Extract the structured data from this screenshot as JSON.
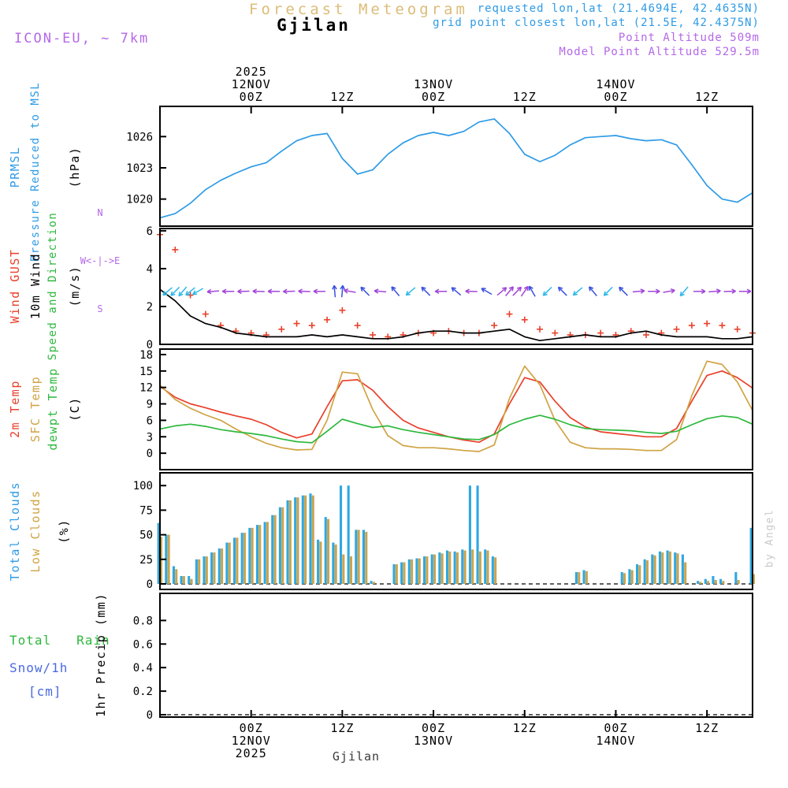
{
  "header": {
    "plot_title": "Forecast Meteogram",
    "station": "Gjilan",
    "model": "ICON-EU, ~ 7km",
    "requested": "requested lon,lat (21.4694E, 42.4635N)",
    "grid_point": "grid point closest lon,lat (21.5E, 42.4375N)",
    "point_altitude": "Point Altitude 509m",
    "model_altitude": "Model Point Altitude 529.5m"
  },
  "footer": {
    "station": "Gjilan"
  },
  "watermark": "by Angel",
  "left_labels": {
    "prmsl": "PRMSL",
    "prmsl_long": "Pressure Reduced to MSL",
    "hpa": "(hPa)",
    "gust": "Wind GUST",
    "wind10": "10m Wind",
    "speed_dir": "Speed and Direction",
    "ms": "(m/s)",
    "t2m": "2m Temp",
    "sfc": "SFC Temp",
    "dewpt": "dewpt Temp",
    "c": "(C)",
    "total_clouds": "Total Clouds",
    "low_clouds": "Low Clouds",
    "pct": "(%)",
    "total_rain": "Total   Rain",
    "snow": "Snow/1h",
    "cm": "[cm]",
    "precip_axis": "1hr Precip (mm)",
    "compass_n": "N",
    "compass_we": "W<-|->E",
    "compass_s": "S"
  },
  "colors": {
    "pressure_line": "#2e9be6",
    "gust": "#e8402a",
    "wind10": "#000000",
    "t2m": "#e8402a",
    "sfc_temp": "#d0a344",
    "dewpoint": "#2db83d",
    "total_clouds": "#2fa8e0",
    "low_clouds": "#c9a450",
    "rain": "#2db83d",
    "snow": "#4a6ae0",
    "purple": "#b468e8",
    "title_tan": "#dcbd78"
  },
  "chart_data": {
    "type": "line",
    "title": "Forecast Meteogram",
    "station": "Gjilan",
    "x": {
      "description": "hours from plot start (11NOV2025 12Z) to end (14NOV2025 ~18Z)",
      "total_hours": 78,
      "ticks": [
        {
          "h": 12,
          "top": [
            "2025",
            "12NOV",
            "00Z"
          ],
          "bottom": [
            "00Z",
            "12NOV",
            "2025"
          ]
        },
        {
          "h": 24,
          "top": [
            "12Z"
          ],
          "bottom": [
            "12Z"
          ]
        },
        {
          "h": 36,
          "top": [
            "13NOV",
            "00Z"
          ],
          "bottom": [
            "00Z",
            "13NOV"
          ]
        },
        {
          "h": 48,
          "top": [
            "12Z"
          ],
          "bottom": [
            "12Z"
          ]
        },
        {
          "h": 60,
          "top": [
            "14NOV",
            "00Z"
          ],
          "bottom": [
            "00Z",
            "14NOV"
          ]
        },
        {
          "h": 72,
          "top": [
            "12Z"
          ],
          "bottom": [
            "12Z"
          ]
        }
      ]
    },
    "panels": [
      {
        "name": "pressure",
        "type": "line",
        "ylabel": "(hPa)",
        "ylim": [
          1017.4,
          1028.9
        ],
        "yticks": [
          1020,
          1023,
          1026
        ],
        "series": [
          {
            "name": "PRMSL",
            "color": "#2e9be6",
            "step_hours": 2,
            "values": [
              1018.2,
              1018.6,
              1019.6,
              1020.9,
              1021.8,
              1022.5,
              1023.1,
              1023.5,
              1024.6,
              1025.6,
              1026.1,
              1026.3,
              1023.9,
              1022.4,
              1022.8,
              1024.3,
              1025.4,
              1026.1,
              1026.4,
              1026.1,
              1026.5,
              1027.4,
              1027.7,
              1026.3,
              1024.3,
              1023.6,
              1024.2,
              1025.2,
              1025.9,
              1026.0,
              1026.1,
              1025.8,
              1025.6,
              1025.7,
              1025.2,
              1023.3,
              1021.3,
              1020.0,
              1019.7,
              1020.6
            ]
          }
        ]
      },
      {
        "name": "wind",
        "type": "line",
        "ylabel": "(m/s)",
        "ylim": [
          0,
          6.12
        ],
        "yticks": [
          0,
          2,
          4,
          6
        ],
        "series": [
          {
            "name": "Wind GUST",
            "color": "#e8402a",
            "marker": "plus",
            "step_hours": 2,
            "values": [
              5.8,
              5.0,
              2.6,
              1.6,
              1.0,
              0.7,
              0.6,
              0.5,
              0.8,
              1.1,
              1.0,
              1.3,
              1.8,
              1.0,
              0.5,
              0.4,
              0.5,
              0.6,
              0.6,
              0.7,
              0.6,
              0.6,
              1.0,
              1.6,
              1.3,
              0.8,
              0.6,
              0.5,
              0.5,
              0.6,
              0.5,
              0.7,
              0.5,
              0.6,
              0.8,
              1.0,
              1.1,
              1.0,
              0.8,
              0.6
            ]
          },
          {
            "name": "10m Wind Speed",
            "color": "#000000",
            "step_hours": 2,
            "values": [
              2.9,
              2.3,
              1.5,
              1.1,
              0.9,
              0.6,
              0.5,
              0.4,
              0.4,
              0.4,
              0.5,
              0.4,
              0.5,
              0.4,
              0.3,
              0.3,
              0.4,
              0.6,
              0.7,
              0.7,
              0.6,
              0.6,
              0.7,
              0.8,
              0.4,
              0.2,
              0.3,
              0.4,
              0.5,
              0.4,
              0.4,
              0.6,
              0.7,
              0.5,
              0.4,
              0.4,
              0.4,
              0.3,
              0.3,
              0.4
            ]
          }
        ],
        "wind_arrows": {
          "plot_level_ms": 2.8,
          "colors": {
            "c": "#2fb9ea",
            "b": "#3a50e0",
            "p": "#a245d8"
          },
          "items": [
            [
              1,
              230,
              "c"
            ],
            [
              2,
              225,
              "c"
            ],
            [
              3,
              220,
              "c"
            ],
            [
              4,
              230,
              "c"
            ],
            [
              5,
              240,
              "c"
            ],
            [
              7,
              265,
              "p"
            ],
            [
              9,
              270,
              "p"
            ],
            [
              11,
              268,
              "p"
            ],
            [
              13,
              272,
              "p"
            ],
            [
              15,
              270,
              "p"
            ],
            [
              17,
              268,
              "p"
            ],
            [
              19,
              272,
              "p"
            ],
            [
              21,
              270,
              "p"
            ],
            [
              23,
              355,
              "b"
            ],
            [
              24,
              5,
              "b"
            ],
            [
              25,
              280,
              "p"
            ],
            [
              27,
              315,
              "b"
            ],
            [
              29,
              275,
              "p"
            ],
            [
              31,
              320,
              "b"
            ],
            [
              33,
              230,
              "c"
            ],
            [
              35,
              315,
              "b"
            ],
            [
              37,
              270,
              "p"
            ],
            [
              39,
              310,
              "b"
            ],
            [
              41,
              272,
              "p"
            ],
            [
              43,
              300,
              "b"
            ],
            [
              45,
              50,
              "p"
            ],
            [
              46,
              40,
              "p"
            ],
            [
              47,
              45,
              "p"
            ],
            [
              48,
              35,
              "p"
            ],
            [
              49,
              330,
              "b"
            ],
            [
              51,
              225,
              "c"
            ],
            [
              53,
              315,
              "b"
            ],
            [
              55,
              230,
              "c"
            ],
            [
              57,
              320,
              "b"
            ],
            [
              59,
              225,
              "c"
            ],
            [
              61,
              315,
              "b"
            ],
            [
              63,
              85,
              "p"
            ],
            [
              65,
              90,
              "p"
            ],
            [
              67,
              80,
              "p"
            ],
            [
              69,
              220,
              "c"
            ],
            [
              71,
              90,
              "p"
            ],
            [
              73,
              85,
              "p"
            ],
            [
              75,
              88,
              "p"
            ],
            [
              77,
              90,
              "p"
            ]
          ]
        }
      },
      {
        "name": "temperature",
        "type": "line",
        "ylabel": "(C)",
        "ylim": [
          -3,
          19
        ],
        "yticks": [
          0,
          3,
          6,
          9,
          12,
          15,
          18
        ],
        "series": [
          {
            "name": "2m Temp",
            "color": "#e8402a",
            "step_hours": 2,
            "values": [
              12.2,
              10.2,
              9.0,
              8.3,
              7.5,
              6.8,
              6.2,
              5.2,
              3.8,
              2.8,
              3.5,
              8.5,
              13.2,
              13.4,
              11.5,
              8.5,
              6.0,
              4.6,
              3.8,
              3.0,
              2.4,
              2.0,
              3.5,
              9.0,
              13.8,
              13.0,
              9.5,
              6.5,
              4.8,
              3.9,
              3.6,
              3.3,
              3.0,
              3.0,
              4.5,
              9.5,
              14.2,
              15.0,
              13.8,
              11.9
            ]
          },
          {
            "name": "SFC Temp",
            "color": "#d0a344",
            "step_hours": 2,
            "values": [
              12.4,
              9.8,
              8.2,
              7.0,
              6.0,
              4.4,
              3.0,
              1.8,
              1.0,
              0.6,
              0.7,
              6.0,
              14.8,
              14.5,
              8.0,
              3.2,
              1.4,
              1.0,
              1.0,
              0.8,
              0.5,
              0.3,
              1.5,
              10.0,
              15.9,
              12.5,
              6.0,
              2.0,
              1.0,
              0.8,
              0.8,
              0.7,
              0.5,
              0.5,
              2.5,
              10.5,
              16.8,
              16.2,
              13.0,
              7.8
            ]
          },
          {
            "name": "dewpt Temp",
            "color": "#2db83d",
            "step_hours": 2,
            "values": [
              4.4,
              5.0,
              5.3,
              4.9,
              4.3,
              3.9,
              3.6,
              3.2,
              2.6,
              2.1,
              1.9,
              4.0,
              6.2,
              5.4,
              4.7,
              5.0,
              4.3,
              3.8,
              3.4,
              3.0,
              2.6,
              2.5,
              3.4,
              5.2,
              6.2,
              6.9,
              6.2,
              5.2,
              4.5,
              4.3,
              4.2,
              4.1,
              3.8,
              3.6,
              4.0,
              5.2,
              6.3,
              6.8,
              6.5,
              5.3
            ]
          }
        ]
      },
      {
        "name": "clouds",
        "type": "bar",
        "ylabel": "(%)",
        "ylim": [
          -5.6,
          113
        ],
        "yticks": [
          0,
          25,
          50,
          75,
          100
        ],
        "zero_line_dashed": true,
        "series": [
          {
            "name": "Total Clouds",
            "color": "#2fa8e0",
            "step_hours": 1,
            "values": [
              62,
              50,
              18,
              8,
              8,
              25,
              28,
              32,
              36,
              42,
              47,
              52,
              57,
              60,
              63,
              70,
              78,
              85,
              88,
              90,
              92,
              45,
              68,
              42,
              100,
              100,
              55,
              55,
              3,
              0,
              0,
              20,
              22,
              25,
              26,
              28,
              30,
              32,
              34,
              33,
              35,
              100,
              100,
              35,
              28,
              0,
              0,
              0,
              0,
              0,
              0,
              0,
              0,
              0,
              0,
              12,
              14,
              0,
              0,
              0,
              0,
              12,
              15,
              20,
              25,
              30,
              33,
              34,
              32,
              30,
              0,
              3,
              5,
              8,
              5,
              0,
              12,
              0,
              57
            ]
          },
          {
            "name": "Low Clouds",
            "color": "#c9a450",
            "step_hours": 1,
            "values": [
              48,
              50,
              15,
              8,
              5,
              25,
              28,
              32,
              36,
              42,
              47,
              52,
              57,
              60,
              63,
              70,
              78,
              85,
              88,
              90,
              90,
              43,
              66,
              40,
              30,
              28,
              55,
              53,
              2,
              0,
              0,
              20,
              22,
              25,
              26,
              28,
              30,
              31,
              33,
              32,
              34,
              35,
              33,
              34,
              27,
              0,
              0,
              0,
              0,
              0,
              0,
              0,
              0,
              0,
              0,
              12,
              13,
              0,
              0,
              0,
              0,
              11,
              14,
              19,
              24,
              29,
              32,
              33,
              31,
              22,
              0,
              2,
              3,
              4,
              3,
              0,
              4,
              0,
              10
            ]
          }
        ]
      },
      {
        "name": "precip",
        "type": "bar",
        "ylabel": "1hr Precip (mm)",
        "ylim": [
          -0.02,
          1.03
        ],
        "yticks": [
          0,
          0.2,
          0.4,
          0.6,
          0.8
        ],
        "zero_line_dashed": true,
        "series": [
          {
            "name": "Total Rain",
            "color": "#2db83d",
            "step_hours": 1,
            "values": []
          },
          {
            "name": "Snow/1h",
            "color": "#4a6ae0",
            "step_hours": 1,
            "values": []
          }
        ]
      }
    ]
  }
}
